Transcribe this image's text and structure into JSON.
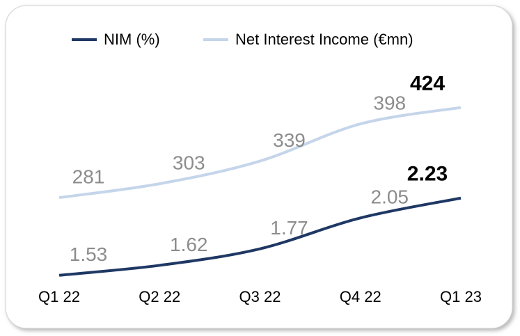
{
  "chart_data": {
    "type": "line",
    "categories": [
      "Q1 22",
      "Q2 22",
      "Q3 22",
      "Q4 22",
      "Q1 23"
    ],
    "series": [
      {
        "name": "NIM (%)",
        "color": "#1f3864",
        "values": [
          1.53,
          1.62,
          1.77,
          2.05,
          2.23
        ]
      },
      {
        "name": "Net Interest Income (€mn)",
        "color": "#c5d5ea",
        "values": [
          281,
          303,
          339,
          398,
          424
        ],
        "axis": "y2"
      }
    ],
    "ylim": [
      1.2,
      3.2
    ],
    "y2lim": [
      100,
      450
    ],
    "legend": "top"
  }
}
